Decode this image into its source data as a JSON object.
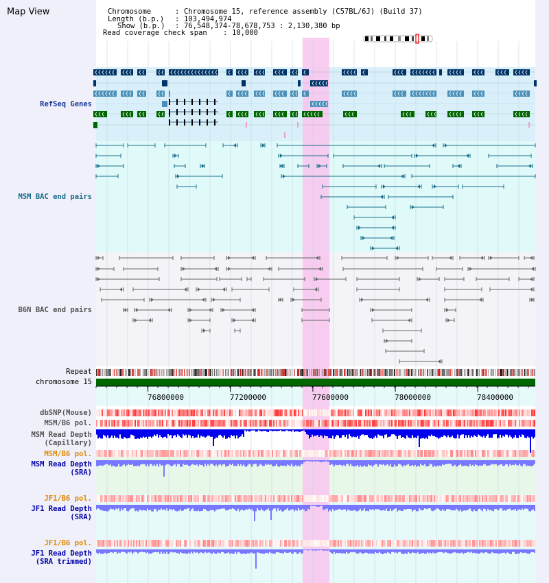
{
  "view_title": "Map View",
  "header": {
    "chromosome_label": "Chromosome",
    "chromosome_value": "Chromosome 15, reference assembly (C57BL/6J) (Build 37)",
    "length_label": "Length (b.p.)",
    "length_value": "103,494,974",
    "show_label": "Show (b.p.)",
    "show_value": "76,548,374-78,678,753 : 2,130,380 bp",
    "coverage_label": "Read coverage check span",
    "coverage_value": "10,000"
  },
  "tracks": {
    "refseq": "RefSeq Genes",
    "msm_bac": "MSM BAC end pairs",
    "b6n_bac": "B6N BAC end pairs",
    "repeat": "Repeat",
    "chrom": "chromosome 15",
    "dbsnp": "dbSNP(Mouse)",
    "msm_pol1": "MSM/B6 pol.",
    "msm_cap_1": "MSM Read Depth",
    "msm_cap_2": "(Capillary)",
    "msm_pol2": "MSM/B6 pol.",
    "msm_sra_1": "MSM Read Depth",
    "msm_sra_2": "(SRA)",
    "jf1_pol1": "JF1/B6 pol.",
    "jf1_sra_1": "JF1 Read Depth",
    "jf1_sra_2": "(SRA)",
    "jf1_pol2": "JF1/B6 pol.",
    "jf1_trim_1": "JF1 Read Depth",
    "jf1_trim_2": "(SRA trimmed)"
  },
  "axis": {
    "range_bp": [
      76548374,
      78678753
    ],
    "ticks": [
      "76800000",
      "77200000",
      "77600000",
      "78000000",
      "78400000"
    ]
  },
  "highlight": {
    "start_bp": 77550000,
    "end_bp": 77680000
  },
  "colors": {
    "refseq_dark": "#003366",
    "refseq_mid": "#4a90b8",
    "refseq_green": "#006600",
    "msm_bac": "#1a6e8a",
    "b6n_bac": "#666666",
    "chromosome": "#006600",
    "highlight": "#f7c8ee",
    "depth_blue": "#0000ee",
    "depth_light": "#7777ff",
    "msm_label": "#0000aa",
    "jf1_label": "#e08a00"
  }
}
